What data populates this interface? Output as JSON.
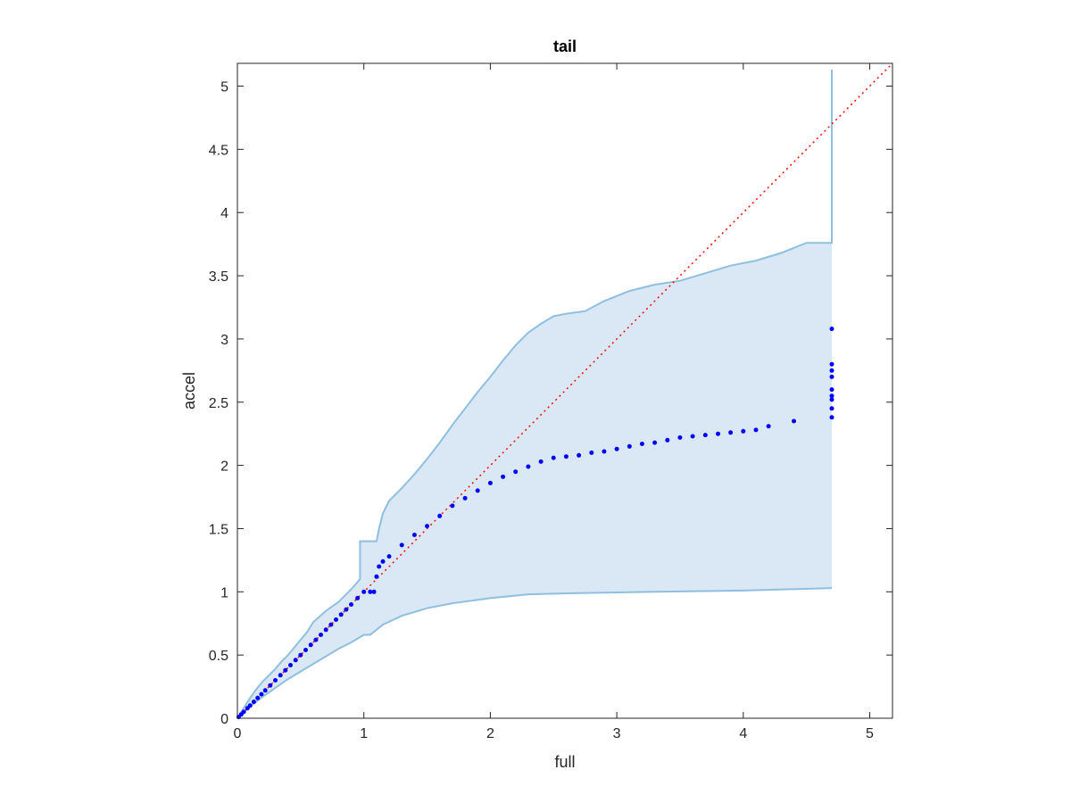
{
  "chart_data": {
    "type": "scatter",
    "title": "tail",
    "xlabel": "full",
    "ylabel": "accel",
    "xlim": [
      0,
      5.18
    ],
    "ylim": [
      0,
      5.18
    ],
    "xticks": [
      0,
      1,
      2,
      3,
      4,
      5
    ],
    "xtick_labels": [
      "0",
      "1",
      "2",
      "3",
      "4",
      "5"
    ],
    "yticks": [
      0,
      0.5,
      1,
      1.5,
      2,
      2.5,
      3,
      3.5,
      4,
      4.5,
      5
    ],
    "ytick_labels": [
      "0",
      "0.5",
      "1",
      "1.5",
      "2",
      "2.5",
      "3",
      "3.5",
      "4",
      "4.5",
      "5"
    ],
    "grid": false,
    "box": true,
    "reference_line": {
      "style": "dotted",
      "color": "#ff0000",
      "points": [
        [
          0,
          0
        ],
        [
          5.18,
          5.18
        ]
      ]
    },
    "band": {
      "fill": "#d9e8f4",
      "stroke": "#8fbfe0",
      "upper": [
        [
          0,
          0
        ],
        [
          0.05,
          0.08
        ],
        [
          0.1,
          0.16
        ],
        [
          0.15,
          0.23
        ],
        [
          0.2,
          0.29
        ],
        [
          0.25,
          0.34
        ],
        [
          0.3,
          0.39
        ],
        [
          0.35,
          0.45
        ],
        [
          0.4,
          0.5
        ],
        [
          0.45,
          0.56
        ],
        [
          0.5,
          0.62
        ],
        [
          0.55,
          0.68
        ],
        [
          0.6,
          0.76
        ],
        [
          0.7,
          0.85
        ],
        [
          0.8,
          0.92
        ],
        [
          0.9,
          1.02
        ],
        [
          0.97,
          1.1
        ],
        [
          0.97,
          1.4
        ],
        [
          1.1,
          1.4
        ],
        [
          1.12,
          1.5
        ],
        [
          1.15,
          1.62
        ],
        [
          1.2,
          1.72
        ],
        [
          1.3,
          1.82
        ],
        [
          1.4,
          1.93
        ],
        [
          1.5,
          2.05
        ],
        [
          1.6,
          2.18
        ],
        [
          1.7,
          2.32
        ],
        [
          1.8,
          2.45
        ],
        [
          1.9,
          2.58
        ],
        [
          2.0,
          2.7
        ],
        [
          2.1,
          2.83
        ],
        [
          2.2,
          2.95
        ],
        [
          2.3,
          3.05
        ],
        [
          2.4,
          3.12
        ],
        [
          2.5,
          3.18
        ],
        [
          2.6,
          3.2
        ],
        [
          2.75,
          3.22
        ],
        [
          2.9,
          3.3
        ],
        [
          3.1,
          3.38
        ],
        [
          3.3,
          3.43
        ],
        [
          3.5,
          3.46
        ],
        [
          3.7,
          3.52
        ],
        [
          3.9,
          3.58
        ],
        [
          4.1,
          3.62
        ],
        [
          4.3,
          3.68
        ],
        [
          4.5,
          3.76
        ],
        [
          4.7,
          3.76
        ],
        [
          4.7,
          5.13
        ]
      ],
      "lower": [
        [
          0,
          0
        ],
        [
          0.1,
          0.09
        ],
        [
          0.2,
          0.17
        ],
        [
          0.3,
          0.24
        ],
        [
          0.4,
          0.31
        ],
        [
          0.5,
          0.37
        ],
        [
          0.6,
          0.43
        ],
        [
          0.7,
          0.49
        ],
        [
          0.8,
          0.55
        ],
        [
          0.9,
          0.6
        ],
        [
          1.0,
          0.66
        ],
        [
          1.05,
          0.66
        ],
        [
          1.1,
          0.7
        ],
        [
          1.15,
          0.74
        ],
        [
          1.3,
          0.81
        ],
        [
          1.5,
          0.87
        ],
        [
          1.7,
          0.91
        ],
        [
          2.0,
          0.95
        ],
        [
          2.3,
          0.98
        ],
        [
          2.7,
          0.99
        ],
        [
          3.3,
          1.0
        ],
        [
          4.0,
          1.01
        ],
        [
          4.7,
          1.03
        ]
      ]
    },
    "series": [
      {
        "color": "#0000ff",
        "x": [
          0.01,
          0.03,
          0.05,
          0.08,
          0.1,
          0.13,
          0.16,
          0.19,
          0.22,
          0.26,
          0.3,
          0.34,
          0.38,
          0.42,
          0.46,
          0.5,
          0.54,
          0.58,
          0.62,
          0.66,
          0.7,
          0.74,
          0.78,
          0.82,
          0.86,
          0.9,
          0.95,
          1.0,
          1.05,
          1.08,
          1.1,
          1.12,
          1.15,
          1.2,
          1.3,
          1.4,
          1.5,
          1.6,
          1.7,
          1.8,
          1.9,
          2.0,
          2.1,
          2.2,
          2.3,
          2.4,
          2.5,
          2.6,
          2.7,
          2.8,
          2.9,
          3.0,
          3.1,
          3.2,
          3.3,
          3.4,
          3.5,
          3.6,
          3.7,
          3.8,
          3.9,
          4.0,
          4.1,
          4.2,
          4.4,
          4.7,
          4.7,
          4.7,
          4.7,
          4.7,
          4.7,
          4.7,
          4.7,
          4.7
        ],
        "y": [
          0.01,
          0.03,
          0.05,
          0.08,
          0.1,
          0.13,
          0.16,
          0.19,
          0.22,
          0.26,
          0.3,
          0.34,
          0.38,
          0.42,
          0.46,
          0.5,
          0.54,
          0.58,
          0.62,
          0.66,
          0.7,
          0.74,
          0.78,
          0.82,
          0.86,
          0.9,
          0.95,
          1.0,
          1.0,
          1.0,
          1.12,
          1.2,
          1.24,
          1.28,
          1.37,
          1.45,
          1.52,
          1.6,
          1.68,
          1.74,
          1.8,
          1.86,
          1.91,
          1.95,
          1.99,
          2.03,
          2.06,
          2.07,
          2.08,
          2.1,
          2.11,
          2.13,
          2.15,
          2.17,
          2.18,
          2.2,
          2.22,
          2.23,
          2.24,
          2.25,
          2.26,
          2.27,
          2.28,
          2.31,
          2.35,
          2.38,
          2.45,
          2.52,
          2.55,
          2.6,
          2.7,
          2.75,
          2.8,
          3.08
        ]
      }
    ]
  }
}
